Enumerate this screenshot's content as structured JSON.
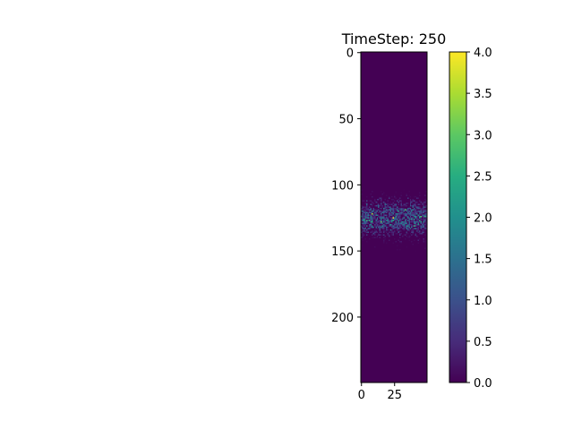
{
  "chart_data": {
    "type": "heatmap",
    "title": "TimeStep: 250",
    "xlabel": "",
    "ylabel": "",
    "grid": false,
    "shape": {
      "rows": 250,
      "cols": 50
    },
    "x_ticks": [
      0,
      25
    ],
    "y_ticks": [
      0,
      50,
      100,
      150,
      200
    ],
    "colorscale": "viridis",
    "vmin": 0.0,
    "vmax": 4.0,
    "colorbar_ticks": [
      "0.0",
      "0.5",
      "1.0",
      "1.5",
      "2.0",
      "2.5",
      "3.0",
      "3.5",
      "4.0"
    ],
    "background_value": 0,
    "active_band": {
      "row_start": 104,
      "row_end": 150,
      "row_center": 125,
      "col_start": 0,
      "col_end": 50
    },
    "bright_cells": [
      {
        "row": 122,
        "col": 8,
        "value": 3.5
      },
      {
        "row": 125,
        "col": 24,
        "value": 4.0
      },
      {
        "row": 128,
        "col": 15,
        "value": 3.0
      },
      {
        "row": 119,
        "col": 33,
        "value": 3.0
      },
      {
        "row": 131,
        "col": 40,
        "value": 2.8
      },
      {
        "row": 124,
        "col": 45,
        "value": 3.0
      }
    ]
  }
}
